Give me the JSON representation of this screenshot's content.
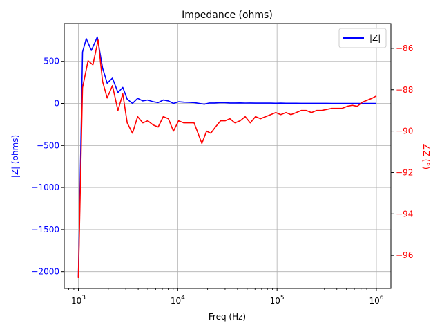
{
  "chart_data": {
    "type": "line",
    "title": "Impedance (ohms)",
    "xlabel": "Freq (Hz)",
    "xscale": "log",
    "xlim": [
      720,
      1400000
    ],
    "x_ticks": [
      {
        "value": 1000,
        "base": "10",
        "exp": "3"
      },
      {
        "value": 10000,
        "base": "10",
        "exp": "4"
      },
      {
        "value": 100000,
        "base": "10",
        "exp": "5"
      },
      {
        "value": 1000000,
        "base": "10",
        "exp": "6"
      }
    ],
    "grid": true,
    "legend_position": "top-right",
    "left_axis": {
      "label": "|Z| (ohms)",
      "color": "#0000ff",
      "ylim": [
        -2200,
        950
      ],
      "ticks": [
        500,
        0,
        -500,
        -1000,
        -1500,
        -2000
      ],
      "tick_labels": [
        "500",
        "0",
        "−500",
        "−1000",
        "−1500",
        "−2000"
      ]
    },
    "right_axis": {
      "label": "∠Z (°)",
      "color": "#ff0000",
      "ylim": [
        -97.6,
        -84.8
      ],
      "ticks": [
        -86,
        -88,
        -90,
        -92,
        -94,
        -96
      ],
      "tick_labels": [
        "−86",
        "−88",
        "−90",
        "−92",
        "−94",
        "−96"
      ]
    },
    "series": [
      {
        "name": "|Z|",
        "color": "#0000ff",
        "axis": "left",
        "x": [
          1000,
          1100,
          1200,
          1350,
          1550,
          1750,
          1950,
          2200,
          2500,
          2800,
          3100,
          3500,
          3950,
          4450,
          5000,
          5650,
          6350,
          7150,
          8050,
          9050,
          10200,
          11500,
          13000,
          14600,
          16500,
          18500,
          20800,
          23500,
          26500,
          29800,
          33500,
          37700,
          42500,
          47800,
          53800,
          60600,
          68200,
          76700,
          86300,
          97100,
          109000,
          123000,
          138000,
          156000,
          175000,
          197000,
          222000,
          250000,
          281000,
          316000,
          356000,
          400000,
          450000,
          507000,
          570000,
          642000,
          722000,
          813000,
          915000,
          1000000
        ],
        "y": [
          -2070,
          610,
          770,
          630,
          790,
          420,
          240,
          300,
          130,
          190,
          50,
          0,
          60,
          30,
          40,
          20,
          10,
          40,
          30,
          0,
          20,
          15,
          12,
          10,
          0,
          -10,
          5,
          5,
          8,
          8,
          5,
          5,
          6,
          4,
          5,
          3,
          4,
          3,
          3,
          2,
          3,
          2,
          2,
          2,
          1,
          1,
          1,
          1,
          1,
          1,
          0,
          0,
          0,
          0,
          0,
          0,
          0,
          0,
          0,
          0
        ]
      },
      {
        "name": "",
        "color": "#ff0000",
        "axis": "right",
        "x": [
          1000,
          1100,
          1250,
          1400,
          1580,
          1750,
          1950,
          2200,
          2500,
          2800,
          3100,
          3500,
          3950,
          4450,
          5000,
          5650,
          6350,
          7150,
          8050,
          9050,
          10200,
          11500,
          13000,
          14600,
          16000,
          17500,
          19500,
          21500,
          24000,
          27000,
          30000,
          33500,
          37700,
          42500,
          47800,
          53800,
          60600,
          68200,
          76700,
          86300,
          97100,
          109000,
          123000,
          138000,
          156000,
          175000,
          197000,
          222000,
          250000,
          281000,
          316000,
          356000,
          400000,
          450000,
          507000,
          570000,
          642000,
          722000,
          813000,
          915000,
          1000000
        ],
        "y": [
          -97.1,
          -87.9,
          -86.6,
          -86.8,
          -85.6,
          -87.6,
          -88.4,
          -87.8,
          -89.0,
          -88.2,
          -89.6,
          -90.1,
          -89.3,
          -89.6,
          -89.5,
          -89.7,
          -89.8,
          -89.3,
          -89.4,
          -90.0,
          -89.5,
          -89.6,
          -89.6,
          -89.6,
          -90.1,
          -90.6,
          -90.0,
          -90.1,
          -89.8,
          -89.5,
          -89.5,
          -89.4,
          -89.6,
          -89.5,
          -89.3,
          -89.6,
          -89.3,
          -89.4,
          -89.3,
          -89.2,
          -89.1,
          -89.2,
          -89.1,
          -89.2,
          -89.1,
          -89.0,
          -89.0,
          -89.1,
          -89.0,
          -89.0,
          -88.95,
          -88.9,
          -88.9,
          -88.9,
          -88.8,
          -88.75,
          -88.8,
          -88.6,
          -88.5,
          -88.4,
          -88.3
        ]
      }
    ]
  }
}
